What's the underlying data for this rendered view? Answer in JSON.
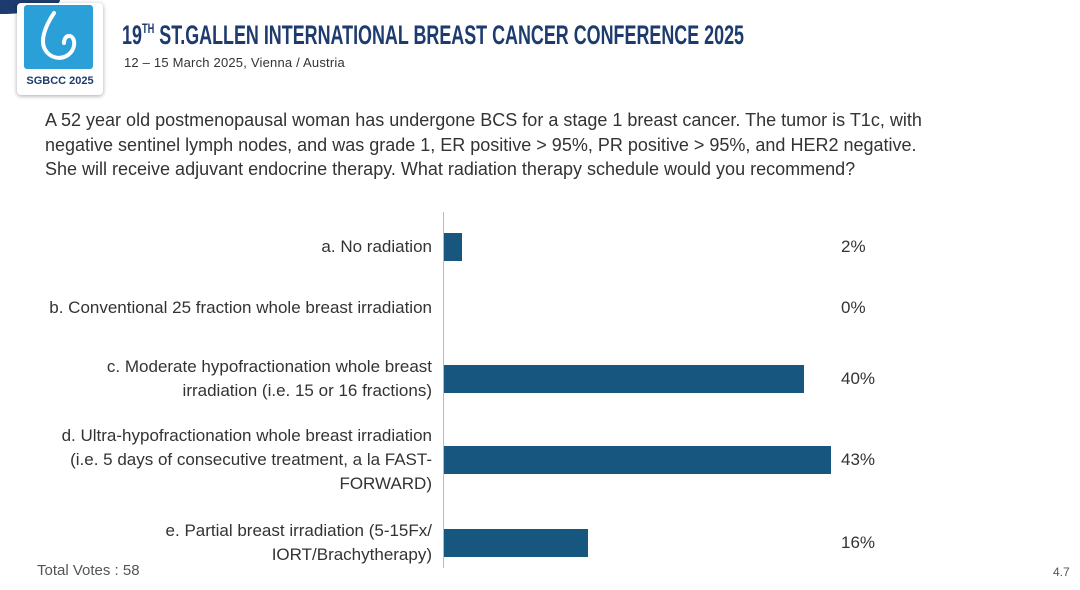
{
  "header": {
    "logo_text": "SGBCC 2025",
    "title_number": "19",
    "title_suffix": "TH",
    "title_rest": " ST.GALLEN INTERNATIONAL BREAST CANCER CONFERENCE 2025",
    "subtitle": "12 – 15 March 2025, Vienna / Austria"
  },
  "question": "A 52 year old postmenopausal woman has undergone BCS for a stage 1 breast cancer.  The tumor is T1c, with negative sentinel lymph nodes, and was grade 1, ER positive > 95%, PR positive > 95%, and HER2 negative.  She will receive adjuvant endocrine therapy. What radiation therapy schedule would you recommend?",
  "chart_data": {
    "type": "bar",
    "orientation": "horizontal",
    "color": "#17567f",
    "categories": [
      "a.   No radiation",
      "b.   Conventional 25 fraction whole breast irradiation",
      "c.   Moderate hypofractionation whole breast irradiation (i.e. 15 or 16 fractions)",
      "d.   Ultra-hypofractionation whole breast irradiation (i.e. 5 days of consecutive treatment, a la FAST-FORWARD)",
      "e.   Partial breast irradiation (5-15Fx/ IORT/Brachytherapy)"
    ],
    "values": [
      2,
      0,
      40,
      43,
      16
    ],
    "value_labels": [
      "2%",
      "0%",
      "40%",
      "43%",
      "16%"
    ]
  },
  "footer": {
    "total_votes": "Total Votes : 58",
    "page": "4.7"
  }
}
